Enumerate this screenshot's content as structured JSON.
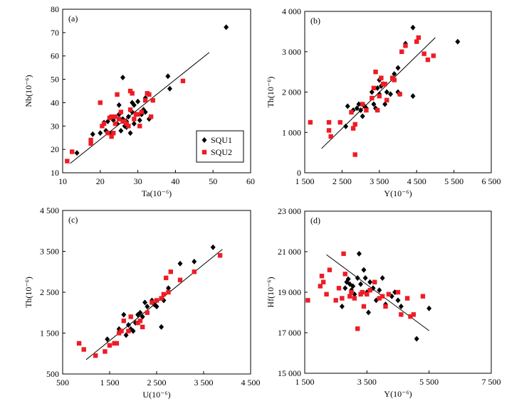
{
  "colors": {
    "SQU1": "#000000",
    "SQU2": "#ee1c25"
  },
  "legend": {
    "items": [
      {
        "name": "SQU1",
        "marker": "diamond"
      },
      {
        "name": "SQU2",
        "marker": "square"
      }
    ]
  },
  "chart_data": [
    {
      "type": "scatter",
      "panel_label": "(a)",
      "xlabel": "Ta(10⁻⁶)",
      "ylabel": "Nb(10⁻⁶)",
      "xlim": [
        10,
        60
      ],
      "ylim": [
        10,
        80
      ],
      "xticks": [
        "10",
        "20",
        "30",
        "40",
        "50",
        "60"
      ],
      "yticks": [
        "10",
        "20",
        "30",
        "40",
        "50",
        "60",
        "70",
        "80"
      ],
      "legend": true,
      "trendline": {
        "x": [
          12,
          49
        ],
        "y": [
          14,
          61.5
        ]
      },
      "series": [
        {
          "name": "SQU1",
          "marker": "diamond",
          "points": [
            [
              13.8,
              18.5
            ],
            [
              18,
              26.5
            ],
            [
              20,
              27
            ],
            [
              21,
              31.5
            ],
            [
              21.5,
              28
            ],
            [
              22,
              32
            ],
            [
              23,
              27
            ],
            [
              23.5,
              32.5
            ],
            [
              24.5,
              31
            ],
            [
              25,
              39
            ],
            [
              25,
              35
            ],
            [
              25.5,
              28
            ],
            [
              26,
              33
            ],
            [
              26,
              50.8
            ],
            [
              26.5,
              30
            ],
            [
              27,
              32
            ],
            [
              27,
              29.5
            ],
            [
              27.5,
              34
            ],
            [
              28,
              27
            ],
            [
              28.5,
              36
            ],
            [
              28.5,
              40
            ],
            [
              29,
              31
            ],
            [
              29,
              39
            ],
            [
              29.5,
              35
            ],
            [
              30,
              40.5
            ],
            [
              30.5,
              32.5
            ],
            [
              31,
              35
            ],
            [
              31.5,
              37
            ],
            [
              32,
              42
            ],
            [
              32,
              36
            ],
            [
              33,
              33
            ],
            [
              38,
              51.3
            ],
            [
              38.5,
              46
            ],
            [
              53.5,
              72.3
            ]
          ]
        },
        {
          "name": "SQU2",
          "marker": "square",
          "points": [
            [
              11.2,
              15
            ],
            [
              12.5,
              19
            ],
            [
              17.5,
              22.5
            ],
            [
              17.5,
              24
            ],
            [
              20,
              40
            ],
            [
              20.5,
              30
            ],
            [
              21,
              31
            ],
            [
              22,
              27
            ],
            [
              22.5,
              33.5
            ],
            [
              23,
              25.5
            ],
            [
              23,
              34
            ],
            [
              23.5,
              27
            ],
            [
              24,
              31
            ],
            [
              24,
              34
            ],
            [
              24.5,
              43.5
            ],
            [
              25,
              33
            ],
            [
              25.5,
              36
            ],
            [
              26,
              32
            ],
            [
              26.5,
              32
            ],
            [
              27,
              31
            ],
            [
              27.5,
              30
            ],
            [
              28,
              45
            ],
            [
              28,
              37
            ],
            [
              28.5,
              44
            ],
            [
              29,
              33
            ],
            [
              29.5,
              35
            ],
            [
              30,
              35
            ],
            [
              30.5,
              30
            ],
            [
              31,
              36
            ],
            [
              32,
              41
            ],
            [
              32.5,
              44
            ],
            [
              33,
              43.5
            ],
            [
              33.5,
              34
            ],
            [
              34,
              41
            ],
            [
              42,
              49.3
            ]
          ]
        }
      ]
    },
    {
      "type": "scatter",
      "panel_label": "(b)",
      "xlabel": "Y(10⁻⁶)",
      "ylabel": "Th(10⁻⁶)",
      "xlim": [
        1500,
        6500
      ],
      "ylim": [
        0,
        4000
      ],
      "xticks": [
        "1 500",
        "2 500",
        "3 500",
        "4 500",
        "5 500",
        "6 500"
      ],
      "yticks": [
        "0",
        "1 000",
        "2 000",
        "3 000",
        "4 000"
      ],
      "legend": false,
      "trendline": {
        "x": [
          1950,
          5000
        ],
        "y": [
          600,
          3350
        ]
      },
      "series": [
        {
          "name": "SQU1",
          "marker": "diamond",
          "points": [
            [
              2600,
              1150
            ],
            [
              2650,
              1650
            ],
            [
              2800,
              1550
            ],
            [
              2900,
              1600
            ],
            [
              2950,
              1700
            ],
            [
              3000,
              1550
            ],
            [
              3050,
              1400
            ],
            [
              3100,
              1650
            ],
            [
              3150,
              1600
            ],
            [
              3300,
              2000
            ],
            [
              3350,
              1700
            ],
            [
              3400,
              1600
            ],
            [
              3450,
              2100
            ],
            [
              3500,
              2300
            ],
            [
              3500,
              1950
            ],
            [
              3550,
              2150
            ],
            [
              3600,
              2200
            ],
            [
              3650,
              1700
            ],
            [
              3700,
              2000
            ],
            [
              3800,
              1950
            ],
            [
              3900,
              2450
            ],
            [
              4000,
              2600
            ],
            [
              4000,
              2000
            ],
            [
              4050,
              1950
            ],
            [
              4200,
              3200
            ],
            [
              4400,
              3600
            ],
            [
              4400,
              1900
            ],
            [
              5600,
              3250
            ]
          ]
        },
        {
          "name": "SQU2",
          "marker": "square",
          "points": [
            [
              1650,
              1250
            ],
            [
              2150,
              1250
            ],
            [
              2150,
              1050
            ],
            [
              2200,
              900
            ],
            [
              2450,
              1250
            ],
            [
              2750,
              1500
            ],
            [
              2800,
              1100
            ],
            [
              2850,
              1200
            ],
            [
              2850,
              450
            ],
            [
              3050,
              1700
            ],
            [
              3150,
              1550
            ],
            [
              3300,
              1850
            ],
            [
              3350,
              2100
            ],
            [
              3400,
              2500
            ],
            [
              3450,
              1550
            ],
            [
              3500,
              1900
            ],
            [
              3550,
              2350
            ],
            [
              3600,
              2200
            ],
            [
              3650,
              2200
            ],
            [
              3700,
              1800
            ],
            [
              3850,
              2350
            ],
            [
              3900,
              2300
            ],
            [
              4050,
              1950
            ],
            [
              4100,
              3000
            ],
            [
              4200,
              3150
            ],
            [
              4500,
              3250
            ],
            [
              4550,
              3350
            ],
            [
              4700,
              2950
            ],
            [
              4800,
              2800
            ],
            [
              4950,
              2900
            ]
          ]
        }
      ]
    },
    {
      "type": "scatter",
      "panel_label": "(c)",
      "xlabel": "U(10⁻⁶)",
      "ylabel": "Th(10⁻⁶)",
      "xlim": [
        500,
        4500
      ],
      "ylim": [
        500,
        4500
      ],
      "xticks": [
        "500",
        "1 500",
        "2 500",
        "3 500",
        "4 500"
      ],
      "yticks": [
        "500",
        "1 500",
        "2 500",
        "3 500",
        "4 500"
      ],
      "legend": false,
      "trendline": {
        "x": [
          1000,
          3900
        ],
        "y": [
          850,
          3550
        ]
      },
      "series": [
        {
          "name": "SQU1",
          "marker": "diamond",
          "points": [
            [
              1450,
              1350
            ],
            [
              1700,
              1600
            ],
            [
              1800,
              1950
            ],
            [
              1850,
              1450
            ],
            [
              1900,
              1700
            ],
            [
              1950,
              1600
            ],
            [
              2000,
              1550
            ],
            [
              2050,
              1750
            ],
            [
              2100,
              1950
            ],
            [
              2150,
              2000
            ],
            [
              2200,
              1900
            ],
            [
              2250,
              2250
            ],
            [
              2300,
              2150
            ],
            [
              2400,
              2300
            ],
            [
              2450,
              2200
            ],
            [
              2500,
              2150
            ],
            [
              2600,
              1650
            ],
            [
              2650,
              2300
            ],
            [
              2750,
              2600
            ],
            [
              3000,
              3200
            ],
            [
              3300,
              3250
            ],
            [
              3700,
              3600
            ]
          ]
        },
        {
          "name": "SQU2",
          "marker": "square",
          "points": [
            [
              850,
              1250
            ],
            [
              950,
              1100
            ],
            [
              1200,
              950
            ],
            [
              1400,
              1050
            ],
            [
              1500,
              1200
            ],
            [
              1600,
              1250
            ],
            [
              1650,
              1250
            ],
            [
              1700,
              1500
            ],
            [
              1750,
              1550
            ],
            [
              1800,
              1800
            ],
            [
              1900,
              1550
            ],
            [
              1950,
              1900
            ],
            [
              2100,
              1750
            ],
            [
              2150,
              1800
            ],
            [
              2200,
              1650
            ],
            [
              2300,
              2000
            ],
            [
              2400,
              2250
            ],
            [
              2500,
              2300
            ],
            [
              2600,
              2350
            ],
            [
              2650,
              2450
            ],
            [
              2700,
              2850
            ],
            [
              2750,
              2500
            ],
            [
              2800,
              3000
            ],
            [
              3000,
              2800
            ],
            [
              3300,
              3000
            ],
            [
              3850,
              3400
            ]
          ]
        }
      ]
    },
    {
      "type": "scatter",
      "panel_label": "(d)",
      "xlabel": "Y(10⁻⁶)",
      "ylabel": "Hf(10⁻⁶)",
      "xlim": [
        1500,
        7500
      ],
      "ylim": [
        15000,
        23000
      ],
      "xticks": [
        "1 500",
        "3 500",
        "5 500",
        "7 500"
      ],
      "yticks": [
        "15 000",
        "17 000",
        "19 000",
        "21 000",
        "23 000"
      ],
      "legend": false,
      "trendline": {
        "x": [
          2200,
          5500
        ],
        "y": [
          20850,
          17100
        ]
      },
      "series": [
        {
          "name": "SQU1",
          "marker": "diamond",
          "points": [
            [
              2700,
              18300
            ],
            [
              2800,
              19200
            ],
            [
              2850,
              19500
            ],
            [
              2900,
              19650
            ],
            [
              2950,
              19400
            ],
            [
              3000,
              19100
            ],
            [
              3050,
              19300
            ],
            [
              3100,
              18900
            ],
            [
              3200,
              19700
            ],
            [
              3250,
              20900
            ],
            [
              3300,
              19400
            ],
            [
              3400,
              20100
            ],
            [
              3450,
              19700
            ],
            [
              3500,
              19000
            ],
            [
              3550,
              18000
            ],
            [
              3600,
              19500
            ],
            [
              3700,
              19200
            ],
            [
              3800,
              18600
            ],
            [
              3900,
              19100
            ],
            [
              4000,
              19700
            ],
            [
              4100,
              18400
            ],
            [
              4300,
              18800
            ],
            [
              4400,
              19000
            ],
            [
              4500,
              18600
            ],
            [
              4600,
              18300
            ],
            [
              5100,
              16700
            ],
            [
              5500,
              18200
            ]
          ]
        },
        {
          "name": "SQU2",
          "marker": "square",
          "points": [
            [
              1600,
              18600
            ],
            [
              2000,
              19300
            ],
            [
              2050,
              19800
            ],
            [
              2100,
              19500
            ],
            [
              2200,
              18900
            ],
            [
              2300,
              20100
            ],
            [
              2500,
              18600
            ],
            [
              2600,
              19200
            ],
            [
              2700,
              18700
            ],
            [
              2750,
              20900
            ],
            [
              2800,
              19900
            ],
            [
              2950,
              18800
            ],
            [
              3000,
              19000
            ],
            [
              3100,
              18700
            ],
            [
              3200,
              17200
            ],
            [
              3300,
              18900
            ],
            [
              3350,
              19000
            ],
            [
              3400,
              18300
            ],
            [
              3500,
              18900
            ],
            [
              3600,
              19100
            ],
            [
              3750,
              19500
            ],
            [
              3900,
              18700
            ],
            [
              4000,
              18800
            ],
            [
              4100,
              18300
            ],
            [
              4200,
              18900
            ],
            [
              4500,
              19000
            ],
            [
              4600,
              17900
            ],
            [
              4800,
              18700
            ],
            [
              4900,
              17800
            ],
            [
              5000,
              17900
            ],
            [
              5300,
              18800
            ]
          ]
        }
      ]
    }
  ]
}
